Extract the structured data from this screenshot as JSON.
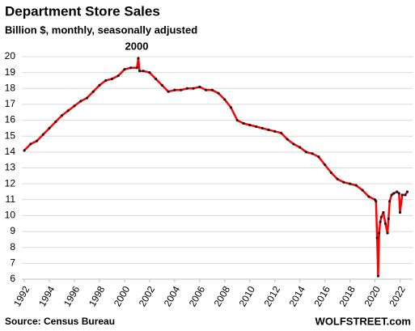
{
  "chart_data": {
    "type": "line",
    "title": "Department Store Sales",
    "subtitle": "Billion $, monthly, seasonally adjusted",
    "annotation": "2000",
    "source": "Source: Census Bureau",
    "brand": "WOLFSTREET.com",
    "line_color": "#ff0000",
    "marker_color": "#1a1a1a",
    "annotation_color": "#ff0000",
    "grid": true,
    "xlim": [
      1991.8,
      2023.0
    ],
    "xticks": [
      1992,
      1994,
      1996,
      1998,
      2000,
      2002,
      2004,
      2006,
      2008,
      2010,
      2012,
      2014,
      2016,
      2018,
      2020,
      2022
    ],
    "ylim": [
      6,
      20
    ],
    "yticks": [
      6,
      7,
      8,
      9,
      10,
      11,
      12,
      13,
      14,
      15,
      16,
      17,
      18,
      19,
      20
    ],
    "x": [
      1992.0,
      1992.5,
      1993.0,
      1993.5,
      1994.0,
      1994.5,
      1995.0,
      1995.5,
      1996.0,
      1996.5,
      1997.0,
      1997.5,
      1998.0,
      1998.5,
      1999.0,
      1999.5,
      2000.0,
      2000.5,
      2001.0,
      2001.1,
      2001.2,
      2001.5,
      2002.0,
      2002.5,
      2003.0,
      2003.5,
      2004.0,
      2004.5,
      2005.0,
      2005.5,
      2006.0,
      2006.5,
      2007.0,
      2007.5,
      2008.0,
      2008.5,
      2009.0,
      2009.5,
      2010.0,
      2010.5,
      2011.0,
      2011.5,
      2012.0,
      2012.5,
      2013.0,
      2013.5,
      2014.0,
      2014.5,
      2015.0,
      2015.5,
      2016.0,
      2016.5,
      2017.0,
      2017.5,
      2018.0,
      2018.5,
      2019.0,
      2019.5,
      2020.0,
      2020.08,
      2020.17,
      2020.25,
      2020.33,
      2020.42,
      2020.5,
      2020.67,
      2020.83,
      2021.0,
      2021.08,
      2021.17,
      2021.33,
      2021.5,
      2021.75,
      2021.92,
      2022.0,
      2022.17,
      2022.42,
      2022.58
    ],
    "values": [
      14.1,
      14.5,
      14.7,
      15.1,
      15.5,
      15.9,
      16.3,
      16.6,
      16.9,
      17.2,
      17.4,
      17.8,
      18.2,
      18.5,
      18.6,
      18.8,
      19.2,
      19.3,
      19.3,
      19.9,
      19.1,
      19.1,
      19.0,
      18.6,
      18.2,
      17.8,
      17.9,
      17.9,
      18.0,
      18.0,
      18.1,
      17.9,
      17.9,
      17.7,
      17.3,
      16.8,
      16.0,
      15.8,
      15.7,
      15.6,
      15.5,
      15.4,
      15.3,
      15.2,
      14.8,
      14.5,
      14.3,
      14.0,
      13.9,
      13.7,
      13.2,
      12.7,
      12.3,
      12.1,
      12.0,
      11.9,
      11.6,
      11.2,
      11.0,
      10.9,
      8.6,
      6.2,
      8.9,
      9.6,
      9.9,
      10.2,
      9.5,
      8.9,
      9.8,
      10.9,
      11.3,
      11.4,
      11.5,
      11.4,
      10.2,
      11.3,
      11.3,
      11.5
    ]
  }
}
